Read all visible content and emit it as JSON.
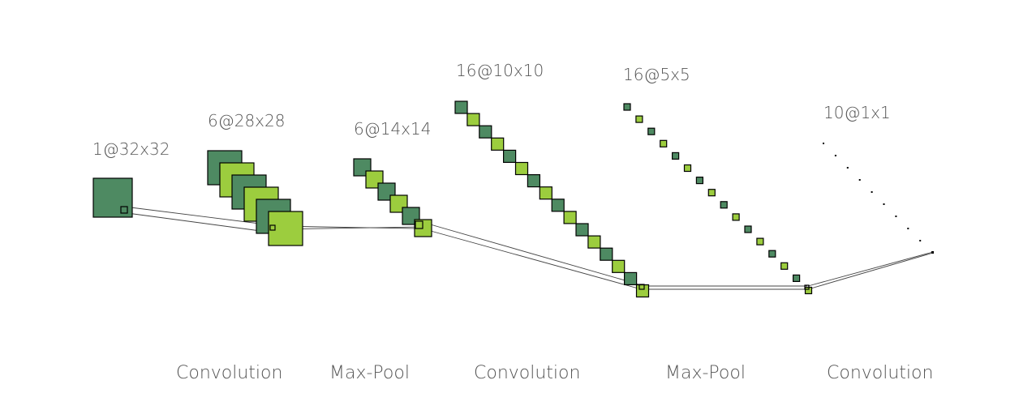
{
  "diagram": {
    "colors": {
      "dark": "#4e8a62",
      "light": "#9ccd3e",
      "stroke": "#000000",
      "connector": "#444444",
      "text": "#555555"
    },
    "layers": [
      {
        "label": "1@32x32"
      },
      {
        "label": "6@28x28"
      },
      {
        "label": "6@14x14"
      },
      {
        "label": "16@10x10"
      },
      {
        "label": "16@5x5"
      },
      {
        "label": "10@1x1"
      }
    ],
    "operations": [
      {
        "label": "Convolution"
      },
      {
        "label": "Max-Pool"
      },
      {
        "label": "Convolution"
      },
      {
        "label": "Max-Pool"
      },
      {
        "label": "Convolution"
      }
    ]
  }
}
